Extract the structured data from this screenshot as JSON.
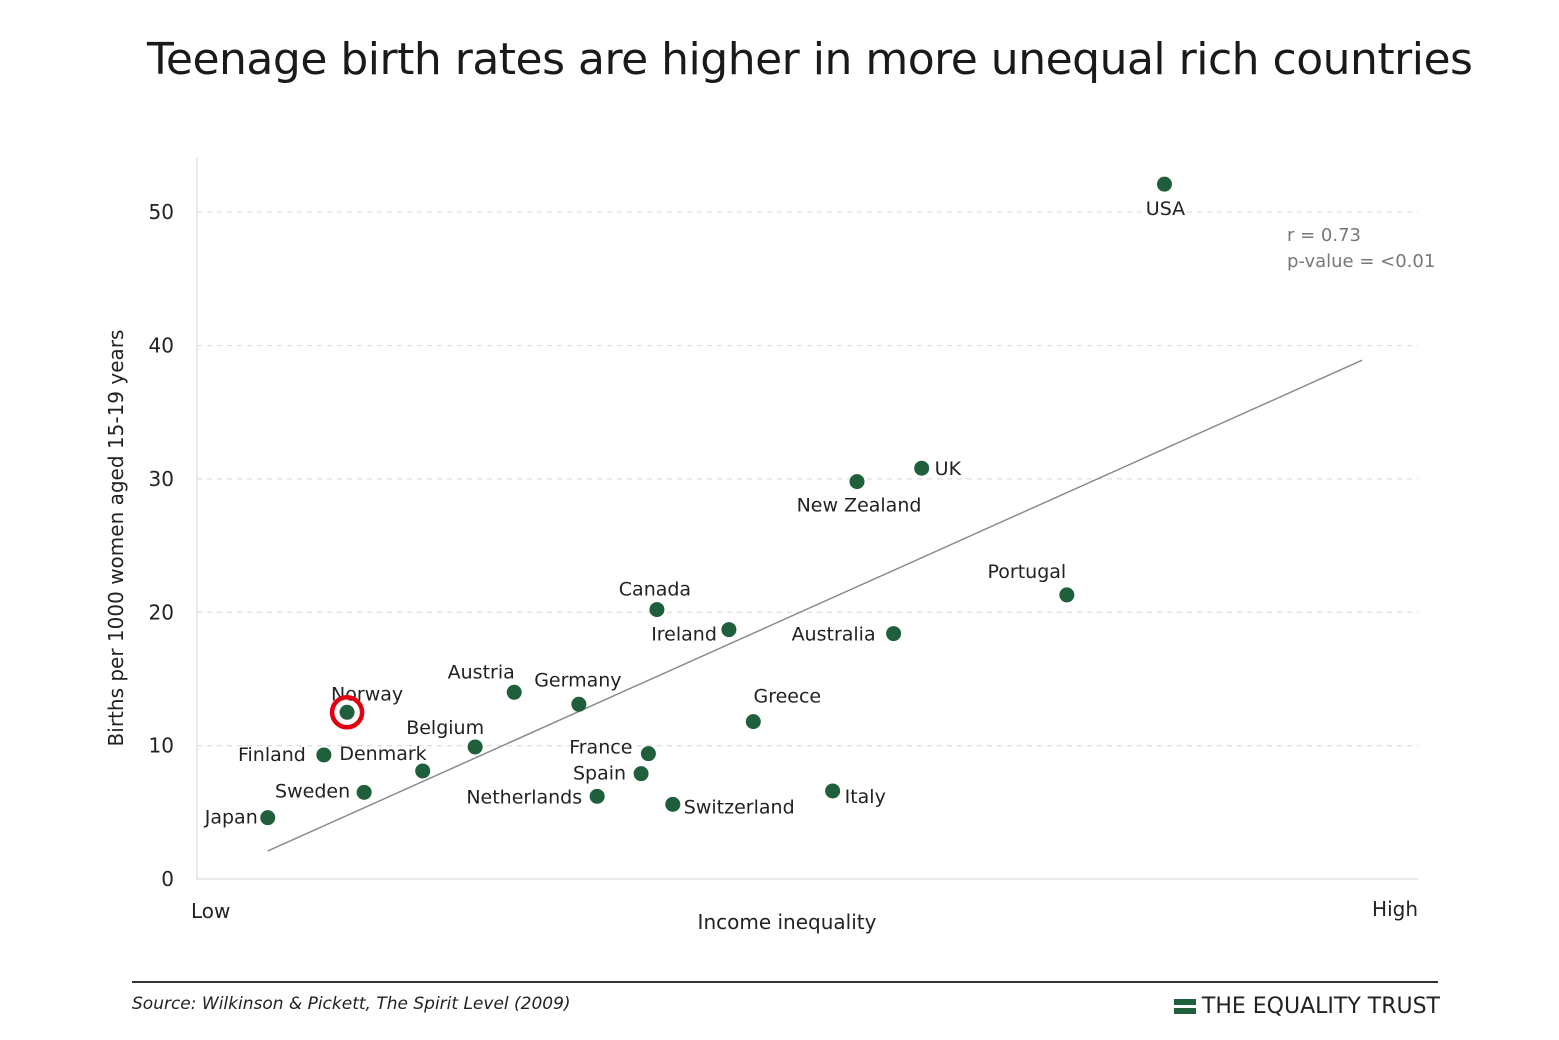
{
  "title": "Teenage birth rates are higher in more unequal rich countries",
  "source": "Source: Wilkinson & Pickett, The Spirit Level (2009)",
  "brand": {
    "name": "THE EQUALITY TRUST",
    "icon": "equals-bars-icon"
  },
  "colors": {
    "point": "#1f5f3c",
    "trend": "#8c8c8c",
    "grid": "#dddddd",
    "highlight": "#e0000f"
  },
  "chart_data": {
    "type": "scatter",
    "title": "Teenage birth rates are higher in more unequal rich countries",
    "xlabel": "Income inequality",
    "ylabel": "Births per 1000 women aged 15-19 years",
    "x_tick_labels": {
      "low": "Low",
      "high": "High"
    },
    "xlim": [
      0,
      100
    ],
    "ylim": [
      0,
      55
    ],
    "y_ticks": [
      0,
      10,
      20,
      30,
      40,
      50
    ],
    "grid": "horizontal dashed",
    "stats": {
      "r": "r = 0.73",
      "p": "p-value = <0.01"
    },
    "trend_line": {
      "x": [
        5.8,
        95.5
      ],
      "y": [
        2.1,
        38.9
      ]
    },
    "highlighted": "Norway",
    "points": [
      {
        "name": "Japan",
        "x": 5.8,
        "y": 4.6
      },
      {
        "name": "Finland",
        "x": 10.4,
        "y": 9.3
      },
      {
        "name": "Norway",
        "x": 12.3,
        "y": 12.5
      },
      {
        "name": "Sweden",
        "x": 13.7,
        "y": 6.5
      },
      {
        "name": "Denmark",
        "x": 18.5,
        "y": 8.1
      },
      {
        "name": "Belgium",
        "x": 22.8,
        "y": 9.9
      },
      {
        "name": "Austria",
        "x": 26.0,
        "y": 14.0
      },
      {
        "name": "Germany",
        "x": 31.3,
        "y": 13.1
      },
      {
        "name": "Netherlands",
        "x": 32.8,
        "y": 6.2
      },
      {
        "name": "Spain",
        "x": 36.4,
        "y": 7.9
      },
      {
        "name": "France",
        "x": 37.0,
        "y": 9.4
      },
      {
        "name": "Canada",
        "x": 37.7,
        "y": 20.2
      },
      {
        "name": "Switzerland",
        "x": 39.0,
        "y": 5.6
      },
      {
        "name": "Ireland",
        "x": 43.6,
        "y": 18.7
      },
      {
        "name": "Greece",
        "x": 45.6,
        "y": 11.8
      },
      {
        "name": "Italy",
        "x": 52.1,
        "y": 6.6
      },
      {
        "name": "New Zealand",
        "x": 54.1,
        "y": 29.8
      },
      {
        "name": "Australia",
        "x": 57.1,
        "y": 18.4
      },
      {
        "name": "UK",
        "x": 59.4,
        "y": 30.8
      },
      {
        "name": "Portugal",
        "x": 71.3,
        "y": 21.3
      },
      {
        "name": "USA",
        "x": 79.3,
        "y": 52.1
      }
    ]
  }
}
